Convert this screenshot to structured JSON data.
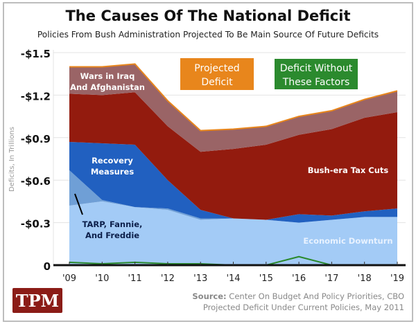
{
  "chart_data": {
    "type": "area",
    "stacked": true,
    "title": "The Causes Of The National Deficit",
    "subtitle": "Policies From Bush Administration Projected To Be Main Source Of Future Deficits",
    "ylabel": "Deficits, In Trillions",
    "xlabel": "",
    "categories": [
      "'09",
      "'10",
      "'11",
      "'12",
      "'13",
      "'14",
      "'15",
      "'16",
      "'17",
      "'18",
      "'19"
    ],
    "ylim": [
      0,
      -1.5
    ],
    "yticks": [
      0,
      -0.3,
      -0.6,
      -0.9,
      -1.2,
      -1.5
    ],
    "ytick_labels": [
      "0",
      "-$0.3",
      "-$0.6",
      "-$0.9",
      "-$1.2",
      "-$1.5"
    ],
    "grid": true,
    "series": [
      {
        "name": "Economic Downturn",
        "color": "#a3cbf6",
        "values": [
          -0.42,
          -0.45,
          -0.41,
          -0.39,
          -0.32,
          -0.33,
          -0.32,
          -0.3,
          -0.32,
          -0.34,
          -0.34
        ]
      },
      {
        "name": "TARP, Fannie, And Freddie",
        "color": "#6f9fd6",
        "values": [
          -0.25,
          -0.01,
          0,
          -0.01,
          -0.01,
          0,
          0,
          0,
          0,
          0,
          0
        ]
      },
      {
        "name": "Recovery Measures",
        "color": "#2160c0",
        "values": [
          -0.2,
          -0.4,
          -0.44,
          -0.2,
          -0.06,
          0,
          0,
          -0.06,
          -0.03,
          -0.04,
          -0.06
        ]
      },
      {
        "name": "Bush-era Tax Cuts",
        "color": "#931b0e",
        "values": [
          -0.34,
          -0.34,
          -0.37,
          -0.38,
          -0.41,
          -0.49,
          -0.53,
          -0.56,
          -0.61,
          -0.66,
          -0.68
        ]
      },
      {
        "name": "Wars in Iraq And Afghanistan",
        "color": "#9a6466",
        "values": [
          -0.19,
          -0.2,
          -0.2,
          -0.18,
          -0.15,
          -0.14,
          -0.13,
          -0.13,
          -0.13,
          -0.13,
          -0.15
        ]
      }
    ],
    "lines": [
      {
        "name": "Projected Deficit",
        "color": "#e8861c",
        "values": [
          -1.4,
          -1.4,
          -1.42,
          -1.16,
          -0.95,
          -0.96,
          -0.98,
          -1.05,
          -1.09,
          -1.17,
          -1.23
        ]
      },
      {
        "name": "Deficit Without These Factors",
        "color": "#2b8a2e",
        "values": [
          -0.02,
          -0.01,
          -0.02,
          -0.01,
          -0.01,
          0,
          0,
          -0.06,
          0,
          0,
          0
        ]
      }
    ],
    "legend": {
      "placement": "top",
      "entries": [
        "Projected Deficit",
        "Deficit Without These Factors"
      ]
    },
    "annotations": {
      "wars": [
        "Wars in Iraq",
        "And Afghanistan"
      ],
      "recovery": [
        "Recovery",
        "Measures"
      ],
      "tarp": [
        "TARP, Fannie,",
        "And Freddie"
      ],
      "tax": "Bush-era Tax Cuts",
      "econ": "Economic Downturn",
      "projected": [
        "Projected",
        "Deficit"
      ],
      "without": [
        "Deficit Without",
        "These Factors"
      ]
    }
  },
  "footer": {
    "logo": "TPM",
    "source_label": "Source:",
    "source_text": " Center On Budget And Policy Priorities, CBO",
    "source_line2": "Projected Deficit Under Current Policies, May 2011"
  }
}
